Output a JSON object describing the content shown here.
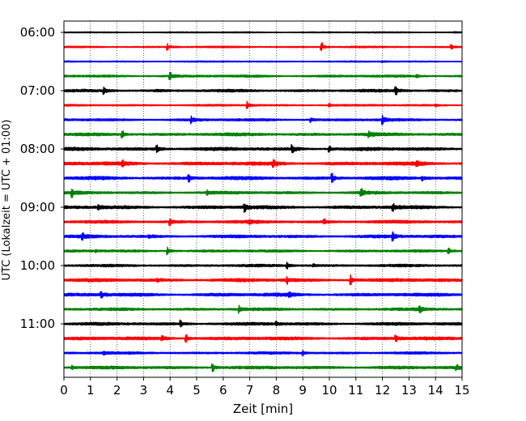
{
  "chart_data": {
    "type": "line",
    "title": "",
    "xlabel": "Zeit  [min]",
    "ylabel": "UTC (Lokalzeit = UTC + 01:00)",
    "xlim": [
      0,
      15
    ],
    "x_ticks": [
      0,
      1,
      2,
      3,
      4,
      5,
      6,
      7,
      8,
      9,
      10,
      11,
      12,
      13,
      14,
      15
    ],
    "grid": "vertical dotted",
    "legend": "none",
    "trace_interval_min": 15,
    "y_tick_labels": [
      "06:00",
      "07:00",
      "08:00",
      "09:00",
      "10:00",
      "11:00"
    ],
    "color_cycle": [
      "#000000",
      "#ff0000",
      "#0000ff",
      "#008000"
    ],
    "traces": [
      {
        "start": "06:00",
        "base_amp": 0.6,
        "events": [
          [
            14.7,
            1.0
          ]
        ]
      },
      {
        "start": "06:15",
        "base_amp": 0.9,
        "events": [
          [
            3.9,
            5.0
          ],
          [
            9.7,
            6.0
          ],
          [
            14.6,
            3.0
          ]
        ]
      },
      {
        "start": "06:30",
        "base_amp": 0.7,
        "events": [
          [
            12.0,
            1.5
          ]
        ]
      },
      {
        "start": "06:45",
        "base_amp": 1.3,
        "events": [
          [
            4.0,
            5.0
          ],
          [
            13.3,
            2.0
          ]
        ]
      },
      {
        "start": "07:00",
        "base_amp": 1.6,
        "events": [
          [
            1.5,
            6.0
          ],
          [
            3.5,
            2.0
          ],
          [
            12.5,
            5.5
          ]
        ]
      },
      {
        "start": "07:15",
        "base_amp": 1.0,
        "events": [
          [
            6.9,
            6.5
          ],
          [
            10.0,
            2.5
          ],
          [
            14.0,
            2.0
          ]
        ]
      },
      {
        "start": "07:30",
        "base_amp": 1.5,
        "events": [
          [
            4.8,
            5.0
          ],
          [
            9.3,
            3.5
          ],
          [
            12.0,
            6.0
          ]
        ]
      },
      {
        "start": "07:45",
        "base_amp": 1.8,
        "events": [
          [
            2.2,
            5.0
          ],
          [
            11.5,
            4.5
          ]
        ]
      },
      {
        "start": "08:00",
        "base_amp": 2.0,
        "events": [
          [
            3.5,
            6.0
          ],
          [
            8.6,
            6.5
          ],
          [
            10.0,
            4.5
          ]
        ]
      },
      {
        "start": "08:15",
        "base_amp": 2.2,
        "events": [
          [
            2.2,
            5.0
          ],
          [
            7.9,
            5.5
          ],
          [
            13.3,
            4.0
          ]
        ]
      },
      {
        "start": "08:30",
        "base_amp": 2.0,
        "events": [
          [
            4.7,
            6.0
          ],
          [
            10.1,
            6.0
          ],
          [
            13.5,
            3.5
          ]
        ]
      },
      {
        "start": "08:45",
        "base_amp": 1.6,
        "events": [
          [
            0.3,
            6.0
          ],
          [
            5.4,
            4.0
          ],
          [
            11.2,
            6.0
          ]
        ]
      },
      {
        "start": "09:00",
        "base_amp": 2.0,
        "events": [
          [
            1.3,
            4.0
          ],
          [
            6.8,
            6.5
          ],
          [
            12.4,
            5.5
          ]
        ]
      },
      {
        "start": "09:15",
        "base_amp": 1.8,
        "events": [
          [
            4.0,
            5.0
          ],
          [
            7.0,
            3.5
          ],
          [
            9.8,
            4.0
          ]
        ]
      },
      {
        "start": "09:30",
        "base_amp": 1.8,
        "events": [
          [
            0.7,
            5.0
          ],
          [
            3.2,
            3.0
          ],
          [
            12.4,
            6.0
          ]
        ]
      },
      {
        "start": "09:45",
        "base_amp": 1.4,
        "events": [
          [
            1.2,
            2.5
          ],
          [
            3.9,
            6.0
          ],
          [
            14.5,
            4.5
          ]
        ]
      },
      {
        "start": "10:00",
        "base_amp": 1.5,
        "events": [
          [
            8.4,
            5.0
          ],
          [
            9.4,
            2.5
          ]
        ]
      },
      {
        "start": "10:15",
        "base_amp": 2.0,
        "events": [
          [
            3.5,
            3.0
          ],
          [
            8.4,
            5.5
          ],
          [
            10.8,
            6.5
          ],
          [
            13.0,
            2.0
          ]
        ]
      },
      {
        "start": "10:30",
        "base_amp": 2.0,
        "events": [
          [
            1.4,
            5.0
          ],
          [
            8.5,
            4.5
          ]
        ]
      },
      {
        "start": "10:45",
        "base_amp": 1.6,
        "events": [
          [
            6.6,
            5.0
          ],
          [
            13.4,
            4.5
          ]
        ]
      },
      {
        "start": "11:00",
        "base_amp": 1.8,
        "events": [
          [
            4.4,
            5.0
          ],
          [
            8.0,
            3.0
          ]
        ]
      },
      {
        "start": "11:15",
        "base_amp": 2.0,
        "events": [
          [
            3.7,
            4.0
          ],
          [
            4.6,
            5.0
          ],
          [
            12.5,
            4.5
          ]
        ]
      },
      {
        "start": "11:30",
        "base_amp": 1.4,
        "events": [
          [
            1.5,
            3.0
          ],
          [
            9.0,
            4.0
          ]
        ]
      },
      {
        "start": "11:45",
        "base_amp": 1.8,
        "events": [
          [
            0.3,
            3.0
          ],
          [
            5.6,
            6.0
          ],
          [
            14.8,
            4.0
          ]
        ]
      }
    ]
  }
}
